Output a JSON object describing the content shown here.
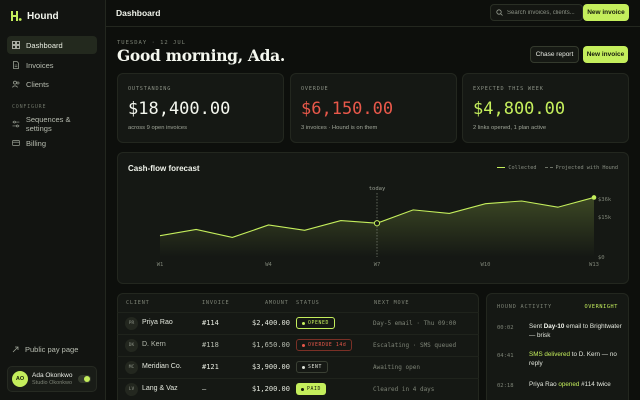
{
  "app": {
    "name": "Hound"
  },
  "sidebar": {
    "items": [
      {
        "label": "Dashboard",
        "icon": "grid-icon"
      },
      {
        "label": "Invoices",
        "icon": "document-icon"
      },
      {
        "label": "Clients",
        "icon": "users-icon"
      }
    ],
    "section_label": "CONFIGURE",
    "config_items": [
      {
        "label": "Sequences & settings",
        "icon": "sliders-icon"
      },
      {
        "label": "Billing",
        "icon": "card-icon"
      }
    ],
    "public_page": "Public pay page",
    "user": {
      "initials": "AO",
      "name": "Ada Okonkwo",
      "studio": "Studio Okonkwo"
    }
  },
  "topbar": {
    "title": "Dashboard",
    "search_placeholder": "Search invoices, clients...",
    "new_invoice": "New invoice"
  },
  "greeting": {
    "date": "TUESDAY · 12 JUL",
    "headline": "Good morning, Ada.",
    "chase_report": "Chase report",
    "new_invoice": "New invoice"
  },
  "kpis": [
    {
      "label": "OUTSTANDING",
      "value": "$18,400.00",
      "sub": "across 9 open invoices",
      "color": "#f4f7ef"
    },
    {
      "label": "OVERDUE",
      "value": "$6,150.00",
      "sub": "3 invoices · Hound is on them",
      "color": "#e8584a"
    },
    {
      "label": "EXPECTED THIS WEEK",
      "value": "$4,800.00",
      "sub": "2 links opened, 1 plan active",
      "color": "#c4ee5c"
    }
  ],
  "chart": {
    "title": "Cash-flow forecast",
    "legend_collected": "Collected",
    "legend_projected": "Projected with Hound",
    "today_label": "today"
  },
  "chart_data": {
    "type": "area",
    "x": [
      "W1",
      "W2",
      "W3",
      "W4",
      "W5",
      "W6",
      "W7",
      "W8",
      "W9",
      "W10",
      "W11",
      "W12",
      "W13"
    ],
    "x_tick_labels": [
      "W1",
      "W4",
      "W7",
      "W10",
      "W13"
    ],
    "y_tick_labels": [
      "$36k",
      "$15k",
      "$0"
    ],
    "series": [
      {
        "name": "Collected",
        "values": [
          12,
          15.5,
          11,
          18,
          15,
          20.5,
          19,
          26.5,
          24.5,
          30,
          31.5,
          28,
          33.5
        ]
      }
    ],
    "today_index": 6,
    "colors": {
      "collected": "#c4ee5c",
      "projected": "#6c7266"
    }
  },
  "table": {
    "headers": [
      "CLIENT",
      "INVOICE",
      "AMOUNT",
      "STATUS",
      "NEXT MOVE"
    ],
    "rows": [
      {
        "initials": "PR",
        "client": "Priya Rao",
        "invoice": "#114",
        "amount": "$2,400.00",
        "status": "OPENED",
        "status_kind": "opened",
        "next": "Day-5 email · Thu 09:00"
      },
      {
        "initials": "DK",
        "client": "D. Kern",
        "invoice": "#118",
        "amount": "$1,650.00",
        "status": "OVERDUE 14d",
        "status_kind": "overdue",
        "next": "Escalating · SMS queued"
      },
      {
        "initials": "MC",
        "client": "Meridian Co.",
        "invoice": "#121",
        "amount": "$3,900.00",
        "status": "SENT",
        "status_kind": "sent",
        "next": "Awaiting open"
      },
      {
        "initials": "LV",
        "client": "Lang & Vaz",
        "invoice": "—",
        "amount": "$1,200.00",
        "status": "PAID",
        "status_kind": "paid",
        "next": "Cleared in 4 days"
      }
    ]
  },
  "activity": {
    "title": "HOUND ACTIVITY",
    "tag": "OVERNIGHT",
    "items": [
      {
        "time": "00:02",
        "pre": "Sent ",
        "strong": "Day-10",
        "mid": " email to ",
        "post": "Brightwater — brisk"
      },
      {
        "time": "04:41",
        "hl": "SMS delivered",
        "mid": " to D. Kern — no reply"
      },
      {
        "time": "02:18",
        "pre": "Priya Rao ",
        "hl": "opened",
        "mid": " #114 twice"
      }
    ]
  }
}
